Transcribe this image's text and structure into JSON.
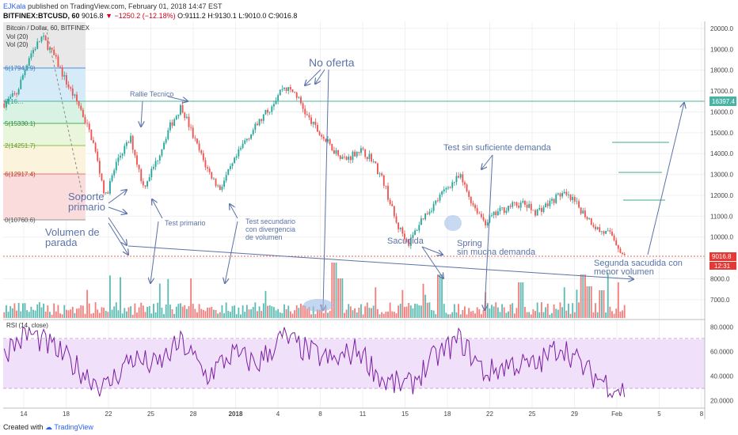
{
  "header": {
    "author": "EJKala",
    "published": "published on TradingView.com, February 01, 2018 14:47 EST",
    "symbol": "BITFINEX:BTCUSD, 60",
    "last": "9016.8",
    "change": "−1250.2 (−12.18%)",
    "ohlc": "O:9111.2 H:9130.1 L:9010.0 C:9016.8"
  },
  "overlay": {
    "series_title": "Bitcoin / Dollar, 60, BITFINEX",
    "vol1": "Vol (20)",
    "vol2": "Vol (20)",
    "rsi": "RSI (14, close)"
  },
  "footer": {
    "created": "Created with",
    "brand": "TradingView"
  },
  "colors": {
    "up": "#26a69a",
    "down": "#ef5350",
    "annotation": "#5b73a8",
    "rsi_line": "#7b1fa2",
    "rsi_band": "#f0e0fa",
    "hline": "#4ab3a3",
    "last_price": "#e53935"
  },
  "chart_data": {
    "type": "candlestick",
    "price_axis": {
      "ylim": [
        6200,
        20300
      ],
      "ticks": [
        "7000.0",
        "8000.0",
        "9000.0",
        "10000.0",
        "11000.0",
        "12000.0",
        "13000.0",
        "14000.0",
        "15000.0",
        "16000.0",
        "17000.0",
        "18000.0",
        "19000.0",
        "20000.0"
      ]
    },
    "rsi_axis": {
      "ylim": [
        15,
        85
      ],
      "ticks": [
        "20.0000",
        "40.0000",
        "60.0000",
        "80.0000"
      ],
      "bands": [
        30,
        70
      ]
    },
    "x_ticks": [
      "14",
      "18",
      "22",
      "25",
      "28",
      "2018",
      "4",
      "8",
      "11",
      "15",
      "18",
      "22",
      "25",
      "29",
      "Feb",
      "5",
      "8"
    ],
    "price_key_points": [
      [
        0,
        16400
      ],
      [
        1,
        16900
      ],
      [
        2,
        18700
      ],
      [
        3,
        19600
      ],
      [
        4,
        18600
      ],
      [
        5,
        17300
      ],
      [
        6,
        16200
      ],
      [
        7,
        14600
      ],
      [
        8,
        11900
      ],
      [
        9,
        13800
      ],
      [
        10,
        14700
      ],
      [
        11,
        12400
      ],
      [
        12,
        13600
      ],
      [
        13,
        15200
      ],
      [
        14,
        16300
      ],
      [
        15,
        14700
      ],
      [
        16,
        13300
      ],
      [
        17,
        12300
      ],
      [
        18,
        13400
      ],
      [
        19,
        14600
      ],
      [
        20,
        15400
      ],
      [
        21,
        16200
      ],
      [
        22,
        17200
      ],
      [
        23,
        16900
      ],
      [
        24,
        15700
      ],
      [
        25,
        14900
      ],
      [
        26,
        14200
      ],
      [
        27,
        13700
      ],
      [
        28,
        14200
      ],
      [
        29,
        13800
      ],
      [
        30,
        12600
      ],
      [
        31,
        10600
      ],
      [
        32,
        9700
      ],
      [
        33,
        10900
      ],
      [
        34,
        11600
      ],
      [
        35,
        12400
      ],
      [
        36,
        12900
      ],
      [
        37,
        11600
      ],
      [
        38,
        10700
      ],
      [
        39,
        11200
      ],
      [
        40,
        11500
      ],
      [
        41,
        11600
      ],
      [
        42,
        11200
      ],
      [
        43,
        11600
      ],
      [
        44,
        12100
      ],
      [
        45,
        11700
      ],
      [
        46,
        11000
      ],
      [
        47,
        10300
      ],
      [
        48,
        10100
      ],
      [
        49,
        9016.8
      ]
    ],
    "last_price": {
      "value": "9016.8",
      "countdown": "12:31"
    },
    "horizontal_level": {
      "value": "16397.4"
    },
    "fib_levels": [
      "6(17943.9)",
      "8(16…",
      "5(15330.1)",
      "2(14251.7)",
      "6(12917.4)",
      "0(10760.6)"
    ],
    "volume_axis": {
      "ylim": [
        0,
        2000
      ]
    },
    "rsi_key_points": [
      [
        0,
        60
      ],
      [
        2,
        75
      ],
      [
        4,
        62
      ],
      [
        6,
        45
      ],
      [
        8,
        30
      ],
      [
        10,
        55
      ],
      [
        12,
        48
      ],
      [
        14,
        68
      ],
      [
        16,
        40
      ],
      [
        18,
        58
      ],
      [
        20,
        50
      ],
      [
        22,
        72
      ],
      [
        24,
        60
      ],
      [
        26,
        52
      ],
      [
        28,
        62
      ],
      [
        30,
        35
      ],
      [
        32,
        32
      ],
      [
        34,
        55
      ],
      [
        36,
        70
      ],
      [
        38,
        42
      ],
      [
        40,
        50
      ],
      [
        42,
        48
      ],
      [
        44,
        66
      ],
      [
        46,
        44
      ],
      [
        48,
        32
      ],
      [
        49,
        28
      ]
    ],
    "annotations": [
      "No oferta",
      "Rallie Tecnico",
      "Soporte",
      "primario",
      "Volumen de",
      "parada",
      "Test primario",
      "Test secundario",
      "con divergencia",
      "de volumen",
      "Sacudida",
      "Test sin suficiente demanda",
      "Spring",
      "sin mucha demanda",
      "Segunda sacudida con",
      "menor volumen"
    ]
  }
}
